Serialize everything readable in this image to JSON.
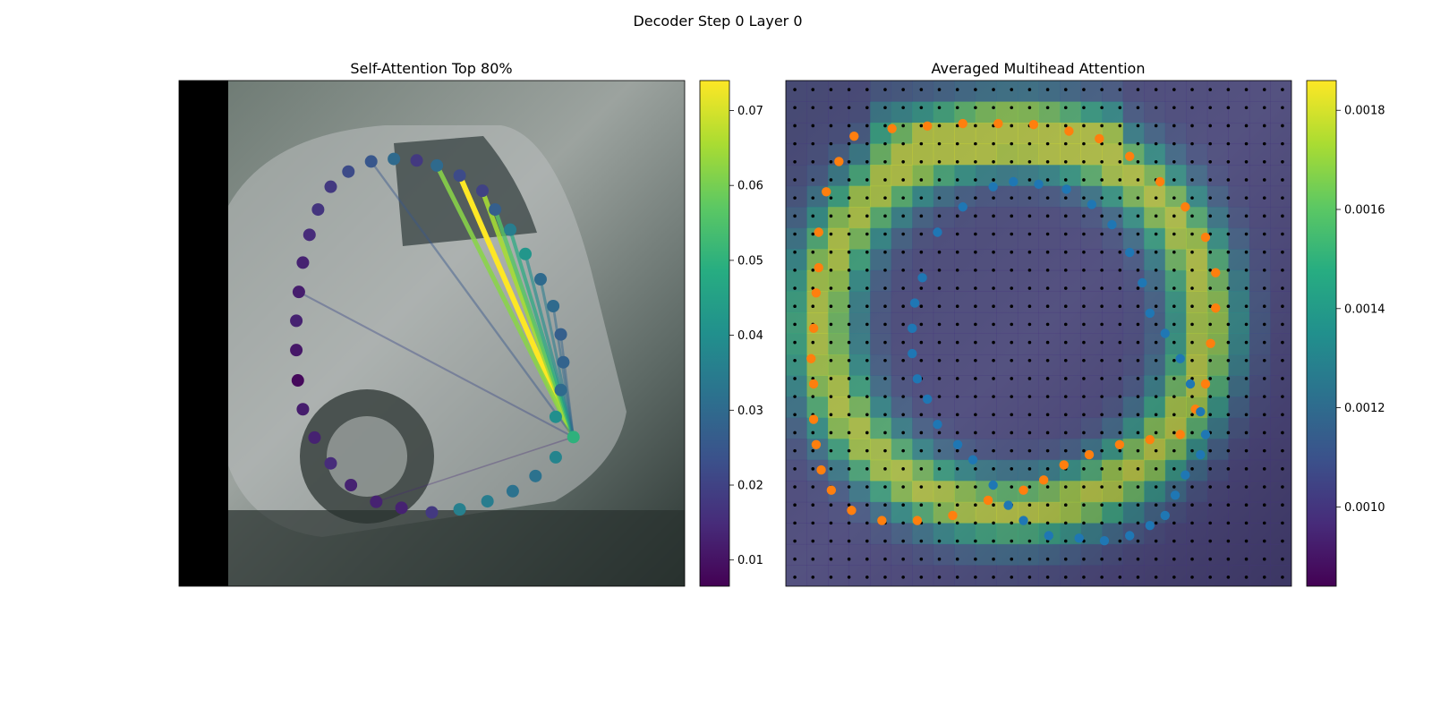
{
  "suptitle": "Decoder Step 0 Layer 0",
  "colormap": [
    "#440154",
    "#472c7a",
    "#3b518b",
    "#2c718e",
    "#21908d",
    "#27ad81",
    "#5cc863",
    "#aadc32",
    "#fde725"
  ],
  "chart_data": [
    {
      "type": "scatter",
      "title": "Self-Attention Top 80%",
      "description_image": "car photo background",
      "source_point": {
        "x": 0.78,
        "y": 0.705
      },
      "colorbar": {
        "vmin": 0.0065,
        "vmax": 0.074,
        "ticks": [
          0.01,
          0.02,
          0.03,
          0.04,
          0.05,
          0.06,
          0.07
        ],
        "tick_labels": [
          "0.01",
          "0.02",
          "0.03",
          "0.04",
          "0.05",
          "0.06",
          "0.07"
        ]
      },
      "points": [
        {
          "x": 0.51,
          "y": 0.168,
          "v": 0.03
        },
        {
          "x": 0.555,
          "y": 0.188,
          "v": 0.022
        },
        {
          "x": 0.6,
          "y": 0.218,
          "v": 0.02
        },
        {
          "x": 0.625,
          "y": 0.255,
          "v": 0.027
        },
        {
          "x": 0.655,
          "y": 0.295,
          "v": 0.035
        },
        {
          "x": 0.685,
          "y": 0.343,
          "v": 0.042
        },
        {
          "x": 0.715,
          "y": 0.393,
          "v": 0.03
        },
        {
          "x": 0.74,
          "y": 0.446,
          "v": 0.03
        },
        {
          "x": 0.755,
          "y": 0.502,
          "v": 0.027
        },
        {
          "x": 0.76,
          "y": 0.557,
          "v": 0.028
        },
        {
          "x": 0.755,
          "y": 0.612,
          "v": 0.03
        },
        {
          "x": 0.745,
          "y": 0.665,
          "v": 0.04
        },
        {
          "x": 0.78,
          "y": 0.705,
          "v": 0.05
        },
        {
          "x": 0.745,
          "y": 0.745,
          "v": 0.037
        },
        {
          "x": 0.705,
          "y": 0.782,
          "v": 0.032
        },
        {
          "x": 0.66,
          "y": 0.812,
          "v": 0.032
        },
        {
          "x": 0.61,
          "y": 0.832,
          "v": 0.035
        },
        {
          "x": 0.555,
          "y": 0.848,
          "v": 0.036
        },
        {
          "x": 0.5,
          "y": 0.854,
          "v": 0.018
        },
        {
          "x": 0.44,
          "y": 0.845,
          "v": 0.013
        },
        {
          "x": 0.39,
          "y": 0.833,
          "v": 0.013
        },
        {
          "x": 0.34,
          "y": 0.8,
          "v": 0.013
        },
        {
          "x": 0.3,
          "y": 0.757,
          "v": 0.015
        },
        {
          "x": 0.268,
          "y": 0.706,
          "v": 0.013
        },
        {
          "x": 0.245,
          "y": 0.65,
          "v": 0.012
        },
        {
          "x": 0.235,
          "y": 0.593,
          "v": 0.008
        },
        {
          "x": 0.232,
          "y": 0.533,
          "v": 0.011
        },
        {
          "x": 0.232,
          "y": 0.475,
          "v": 0.013
        },
        {
          "x": 0.237,
          "y": 0.418,
          "v": 0.012
        },
        {
          "x": 0.245,
          "y": 0.36,
          "v": 0.013
        },
        {
          "x": 0.258,
          "y": 0.305,
          "v": 0.015
        },
        {
          "x": 0.275,
          "y": 0.255,
          "v": 0.017
        },
        {
          "x": 0.3,
          "y": 0.21,
          "v": 0.018
        },
        {
          "x": 0.335,
          "y": 0.18,
          "v": 0.022
        },
        {
          "x": 0.38,
          "y": 0.16,
          "v": 0.025
        },
        {
          "x": 0.425,
          "y": 0.155,
          "v": 0.03
        },
        {
          "x": 0.47,
          "y": 0.158,
          "v": 0.018
        }
      ],
      "lines": [
        {
          "to": 1,
          "v": 0.074
        },
        {
          "to": 0,
          "v": 0.062
        },
        {
          "to": 2,
          "v": 0.065
        },
        {
          "to": 3,
          "v": 0.056
        },
        {
          "to": 4,
          "v": 0.048
        },
        {
          "to": 5,
          "v": 0.04
        },
        {
          "to": 6,
          "v": 0.035
        },
        {
          "to": 7,
          "v": 0.03
        },
        {
          "to": 8,
          "v": 0.028
        },
        {
          "to": 34,
          "v": 0.025
        },
        {
          "to": 28,
          "v": 0.022
        },
        {
          "to": 20,
          "v": 0.014
        }
      ]
    },
    {
      "type": "heatmap",
      "title": "Averaged Multihead Attention",
      "grid_cols": 24,
      "grid_rows": 24,
      "colorbar": {
        "vmin": 0.00084,
        "vmax": 0.00186,
        "ticks": [
          0.001,
          0.0012,
          0.0014,
          0.0016,
          0.0018
        ],
        "tick_labels": [
          "0.0010",
          "0.0012",
          "0.0014",
          "0.0016",
          "0.0018"
        ]
      },
      "series": [
        {
          "name": "outer",
          "color": "#ff7f0e",
          "points": [
            [
              0.135,
              0.11
            ],
            [
              0.21,
              0.095
            ],
            [
              0.28,
              0.09
            ],
            [
              0.35,
              0.085
            ],
            [
              0.42,
              0.085
            ],
            [
              0.49,
              0.087
            ],
            [
              0.56,
              0.1
            ],
            [
              0.62,
              0.115
            ],
            [
              0.68,
              0.15
            ],
            [
              0.74,
              0.2
            ],
            [
              0.79,
              0.25
            ],
            [
              0.83,
              0.31
            ],
            [
              0.85,
              0.38
            ],
            [
              0.85,
              0.45
            ],
            [
              0.84,
              0.52
            ],
            [
              0.83,
              0.6
            ],
            [
              0.81,
              0.65
            ],
            [
              0.78,
              0.7
            ],
            [
              0.72,
              0.71
            ],
            [
              0.66,
              0.72
            ],
            [
              0.6,
              0.74
            ],
            [
              0.55,
              0.76
            ],
            [
              0.51,
              0.79
            ],
            [
              0.47,
              0.81
            ],
            [
              0.4,
              0.83
            ],
            [
              0.33,
              0.86
            ],
            [
              0.26,
              0.87
            ],
            [
              0.19,
              0.87
            ],
            [
              0.13,
              0.85
            ],
            [
              0.09,
              0.81
            ],
            [
              0.07,
              0.77
            ],
            [
              0.06,
              0.72
            ],
            [
              0.055,
              0.67
            ],
            [
              0.055,
              0.6
            ],
            [
              0.05,
              0.55
            ],
            [
              0.055,
              0.49
            ],
            [
              0.06,
              0.42
            ],
            [
              0.065,
              0.37
            ],
            [
              0.065,
              0.3
            ],
            [
              0.08,
              0.22
            ],
            [
              0.105,
              0.16
            ]
          ]
        },
        {
          "name": "inner",
          "color": "#1f77b4",
          "points": [
            [
              0.3,
              0.3
            ],
            [
              0.35,
              0.25
            ],
            [
              0.41,
              0.21
            ],
            [
              0.45,
              0.2
            ],
            [
              0.5,
              0.205
            ],
            [
              0.555,
              0.215
            ],
            [
              0.605,
              0.245
            ],
            [
              0.645,
              0.285
            ],
            [
              0.68,
              0.34
            ],
            [
              0.705,
              0.4
            ],
            [
              0.72,
              0.46
            ],
            [
              0.75,
              0.5
            ],
            [
              0.78,
              0.55
            ],
            [
              0.8,
              0.6
            ],
            [
              0.82,
              0.655
            ],
            [
              0.83,
              0.7
            ],
            [
              0.82,
              0.74
            ],
            [
              0.79,
              0.78
            ],
            [
              0.77,
              0.82
            ],
            [
              0.75,
              0.86
            ],
            [
              0.72,
              0.88
            ],
            [
              0.68,
              0.9
            ],
            [
              0.63,
              0.91
            ],
            [
              0.58,
              0.905
            ],
            [
              0.52,
              0.9
            ],
            [
              0.47,
              0.87
            ],
            [
              0.44,
              0.84
            ],
            [
              0.41,
              0.8
            ],
            [
              0.37,
              0.75
            ],
            [
              0.34,
              0.72
            ],
            [
              0.3,
              0.68
            ],
            [
              0.28,
              0.63
            ],
            [
              0.26,
              0.59
            ],
            [
              0.25,
              0.54
            ],
            [
              0.25,
              0.49
            ],
            [
              0.255,
              0.44
            ],
            [
              0.27,
              0.39
            ]
          ]
        }
      ]
    }
  ]
}
